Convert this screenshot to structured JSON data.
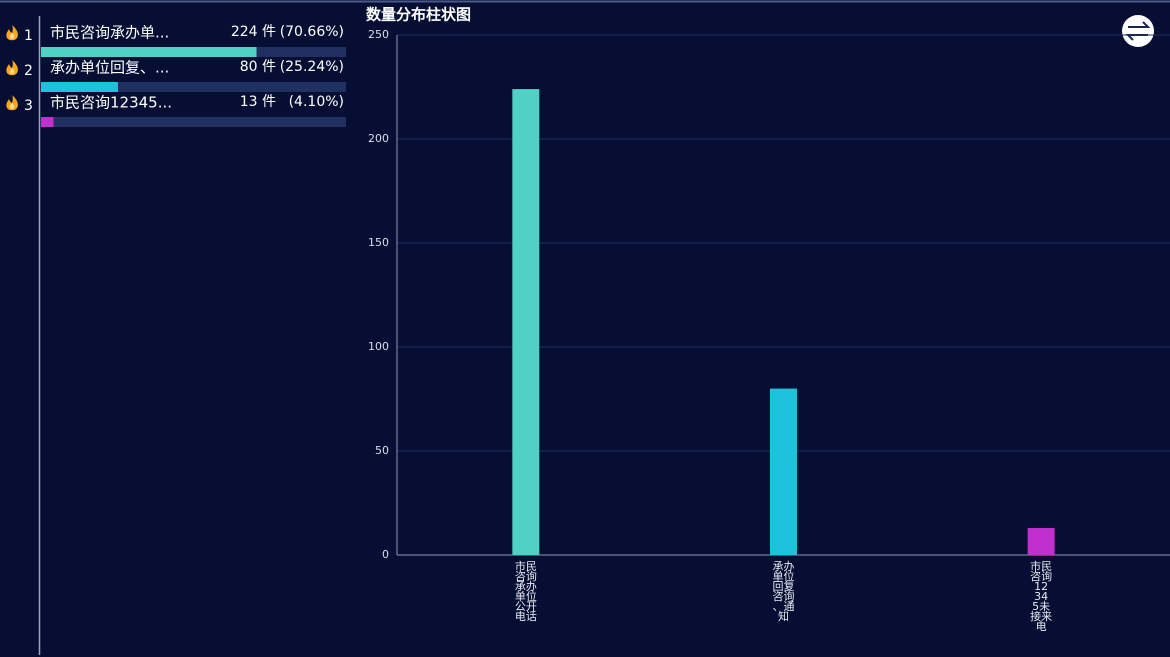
{
  "ranking": {
    "items": [
      {
        "rank": 1,
        "name": "市民咨询承办单...",
        "count": 224,
        "count_label": "224 件",
        "percent": 70.66,
        "percent_label": "(70.66%)",
        "color": "#4fd1c5"
      },
      {
        "rank": 2,
        "name": "承办单位回复、...",
        "count": 80,
        "count_label": "80 件",
        "percent": 25.24,
        "percent_label": "(25.24%)",
        "color": "#1ec2dc"
      },
      {
        "rank": 3,
        "name": "市民咨询12345...",
        "count": 13,
        "count_label": "13 件",
        "percent": 4.1,
        "percent_label": "(4.10%)",
        "color": "#c12fcf"
      }
    ]
  },
  "chart_data": {
    "type": "bar",
    "title": "数量分布柱状图",
    "categories": [
      "市民咨询承办单位公开电话",
      "承办单位回复咨询、通知",
      "市民咨询12345未接来电"
    ],
    "values": [
      224,
      80,
      13
    ],
    "colors": [
      "#4fd1c5",
      "#1ec2dc",
      "#c12fcf"
    ],
    "ylim": [
      0,
      250
    ],
    "yticks": [
      0,
      50,
      100,
      150,
      200,
      250
    ],
    "grid": true
  }
}
